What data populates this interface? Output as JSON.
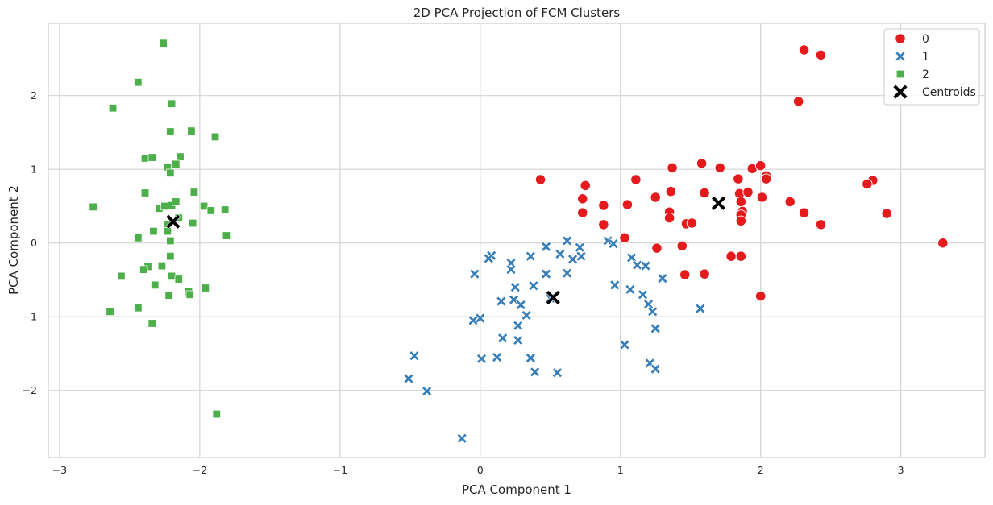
{
  "chart_data": {
    "type": "scatter",
    "title": "2D PCA Projection of FCM Clusters",
    "xlabel": "PCA Component 1",
    "ylabel": "PCA Component 2",
    "xlim": [
      -3.08,
      3.6
    ],
    "ylim": [
      -2.91,
      2.98
    ],
    "xticks": [
      -3,
      -2,
      -1,
      0,
      1,
      2,
      3
    ],
    "yticks": [
      -2,
      -1,
      0,
      1,
      2
    ],
    "xtick_labels": [
      "−3",
      "−2",
      "−1",
      "0",
      "1",
      "2",
      "3"
    ],
    "ytick_labels": [
      "−2",
      "−1",
      "0",
      "1",
      "2"
    ],
    "grid": true,
    "legend_position": "top-right",
    "series": [
      {
        "name": "0",
        "marker": "circle",
        "color": "#e41a1c",
        "points": [
          [
            2.31,
            2.62
          ],
          [
            2.43,
            2.55
          ],
          [
            2.27,
            1.92
          ],
          [
            0.43,
            0.86
          ],
          [
            0.75,
            0.78
          ],
          [
            1.11,
            0.86
          ],
          [
            1.37,
            1.02
          ],
          [
            1.58,
            1.08
          ],
          [
            1.71,
            1.02
          ],
          [
            1.94,
            1.01
          ],
          [
            2.0,
            1.05
          ],
          [
            2.04,
            0.91
          ],
          [
            2.04,
            0.87
          ],
          [
            1.84,
            0.87
          ],
          [
            2.8,
            0.85
          ],
          [
            2.76,
            0.8
          ],
          [
            0.73,
            0.6
          ],
          [
            0.73,
            0.41
          ],
          [
            0.88,
            0.51
          ],
          [
            1.05,
            0.52
          ],
          [
            1.25,
            0.62
          ],
          [
            1.36,
            0.7
          ],
          [
            1.6,
            0.68
          ],
          [
            1.85,
            0.67
          ],
          [
            1.91,
            0.69
          ],
          [
            2.01,
            0.62
          ],
          [
            2.21,
            0.56
          ],
          [
            1.86,
            0.56
          ],
          [
            1.35,
            0.42
          ],
          [
            1.35,
            0.34
          ],
          [
            1.47,
            0.26
          ],
          [
            1.51,
            0.27
          ],
          [
            1.87,
            0.43
          ],
          [
            1.86,
            0.38
          ],
          [
            1.86,
            0.3
          ],
          [
            2.31,
            0.41
          ],
          [
            2.43,
            0.25
          ],
          [
            2.9,
            0.4
          ],
          [
            0.88,
            0.25
          ],
          [
            1.03,
            0.07
          ],
          [
            1.26,
            -0.07
          ],
          [
            1.44,
            -0.04
          ],
          [
            1.79,
            -0.18
          ],
          [
            1.86,
            -0.18
          ],
          [
            1.46,
            -0.43
          ],
          [
            1.6,
            -0.42
          ],
          [
            2.0,
            -0.72
          ],
          [
            3.3,
            0.0
          ]
        ]
      },
      {
        "name": "1",
        "marker": "x",
        "color": "#377eb8",
        "points": [
          [
            0.62,
            0.03
          ],
          [
            0.47,
            -0.05
          ],
          [
            0.91,
            0.03
          ],
          [
            0.95,
            -0.01
          ],
          [
            0.71,
            -0.06
          ],
          [
            0.72,
            -0.18
          ],
          [
            0.57,
            -0.15
          ],
          [
            0.66,
            -0.22
          ],
          [
            0.36,
            -0.18
          ],
          [
            0.08,
            -0.17
          ],
          [
            0.06,
            -0.21
          ],
          [
            0.22,
            -0.27
          ],
          [
            0.22,
            -0.36
          ],
          [
            -0.04,
            -0.42
          ],
          [
            0.62,
            -0.41
          ],
          [
            0.47,
            -0.42
          ],
          [
            0.38,
            -0.58
          ],
          [
            0.25,
            -0.6
          ],
          [
            0.15,
            -0.79
          ],
          [
            0.24,
            -0.77
          ],
          [
            0.29,
            -0.84
          ],
          [
            0.5,
            -0.75
          ],
          [
            0.96,
            -0.57
          ],
          [
            1.07,
            -0.63
          ],
          [
            1.08,
            -0.2
          ],
          [
            1.12,
            -0.3
          ],
          [
            1.18,
            -0.31
          ],
          [
            1.3,
            -0.48
          ],
          [
            1.16,
            -0.7
          ],
          [
            1.2,
            -0.83
          ],
          [
            1.23,
            -0.93
          ],
          [
            1.57,
            -0.89
          ],
          [
            0.33,
            -0.98
          ],
          [
            0.27,
            -1.12
          ],
          [
            -0.05,
            -1.05
          ],
          [
            0.0,
            -1.02
          ],
          [
            0.16,
            -1.29
          ],
          [
            0.27,
            -1.32
          ],
          [
            1.25,
            -1.16
          ],
          [
            1.03,
            -1.38
          ],
          [
            -0.47,
            -1.53
          ],
          [
            0.01,
            -1.57
          ],
          [
            0.12,
            -1.55
          ],
          [
            0.36,
            -1.56
          ],
          [
            0.39,
            -1.75
          ],
          [
            0.55,
            -1.76
          ],
          [
            1.21,
            -1.63
          ],
          [
            1.25,
            -1.71
          ],
          [
            -0.51,
            -1.84
          ],
          [
            -0.38,
            -2.01
          ],
          [
            -0.13,
            -2.65
          ]
        ]
      },
      {
        "name": "2",
        "marker": "square",
        "color": "#4daf4a",
        "points": [
          [
            -2.26,
            2.71
          ],
          [
            -2.44,
            2.18
          ],
          [
            -2.62,
            1.83
          ],
          [
            -2.2,
            1.89
          ],
          [
            -2.21,
            1.51
          ],
          [
            -2.06,
            1.52
          ],
          [
            -1.89,
            1.44
          ],
          [
            -2.39,
            1.15
          ],
          [
            -2.34,
            1.16
          ],
          [
            -2.14,
            1.17
          ],
          [
            -2.23,
            1.03
          ],
          [
            -2.17,
            1.07
          ],
          [
            -2.21,
            0.95
          ],
          [
            -2.39,
            0.68
          ],
          [
            -2.04,
            0.69
          ],
          [
            -2.76,
            0.49
          ],
          [
            -2.29,
            0.47
          ],
          [
            -2.25,
            0.5
          ],
          [
            -2.2,
            0.51
          ],
          [
            -2.17,
            0.56
          ],
          [
            -1.97,
            0.5
          ],
          [
            -1.92,
            0.44
          ],
          [
            -1.82,
            0.45
          ],
          [
            -2.15,
            0.34
          ],
          [
            -2.05,
            0.27
          ],
          [
            -2.23,
            0.25
          ],
          [
            -2.33,
            0.16
          ],
          [
            -2.23,
            0.16
          ],
          [
            -2.44,
            0.07
          ],
          [
            -2.21,
            0.03
          ],
          [
            -1.81,
            0.1
          ],
          [
            -2.21,
            -0.18
          ],
          [
            -2.37,
            -0.32
          ],
          [
            -2.4,
            -0.36
          ],
          [
            -2.27,
            -0.31
          ],
          [
            -2.56,
            -0.45
          ],
          [
            -2.2,
            -0.45
          ],
          [
            -2.15,
            -0.49
          ],
          [
            -2.32,
            -0.57
          ],
          [
            -1.96,
            -0.61
          ],
          [
            -2.08,
            -0.66
          ],
          [
            -2.07,
            -0.7
          ],
          [
            -2.22,
            -0.71
          ],
          [
            -2.64,
            -0.93
          ],
          [
            -2.44,
            -0.88
          ],
          [
            -2.34,
            -1.09
          ],
          [
            -1.88,
            -2.32
          ]
        ]
      }
    ],
    "centroids": {
      "name": "Centroids",
      "marker": "X",
      "color": "#000000",
      "points": [
        [
          -2.19,
          0.29
        ],
        [
          0.52,
          -0.74
        ],
        [
          1.7,
          0.54
        ]
      ]
    }
  }
}
